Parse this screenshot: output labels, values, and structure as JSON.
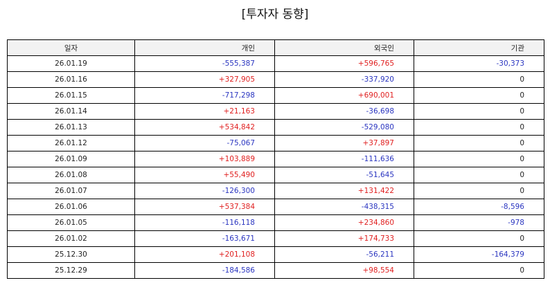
{
  "title": "[투자자 동향]",
  "colors": {
    "positive": "#e02020",
    "negative": "#2a35c0",
    "neutral": "#222222",
    "header_bg": "#f2f2f2"
  },
  "columns": [
    "일자",
    "개인",
    "외국인",
    "기관"
  ],
  "rows": [
    [
      "26.01.19",
      "-555,387",
      "+596,765",
      "-30,373"
    ],
    [
      "26.01.16",
      "+327,905",
      "-337,920",
      "0"
    ],
    [
      "26.01.15",
      "-717,298",
      "+690,001",
      "0"
    ],
    [
      "26.01.14",
      "+21,163",
      "-36,698",
      "0"
    ],
    [
      "26.01.13",
      "+534,842",
      "-529,080",
      "0"
    ],
    [
      "26.01.12",
      "-75,067",
      "+37,897",
      "0"
    ],
    [
      "26.01.09",
      "+103,889",
      "-111,636",
      "0"
    ],
    [
      "26.01.08",
      "+55,490",
      "-51,645",
      "0"
    ],
    [
      "26.01.07",
      "-126,300",
      "+131,422",
      "0"
    ],
    [
      "26.01.06",
      "+537,384",
      "-438,315",
      "-8,596"
    ],
    [
      "26.01.05",
      "-116,118",
      "+234,860",
      "-978"
    ],
    [
      "26.01.02",
      "-163,671",
      "+174,733",
      "0"
    ],
    [
      "25.12.30",
      "+201,108",
      "-56,211",
      "-164,379"
    ],
    [
      "25.12.29",
      "-184,586",
      "+98,554",
      "0"
    ]
  ]
}
